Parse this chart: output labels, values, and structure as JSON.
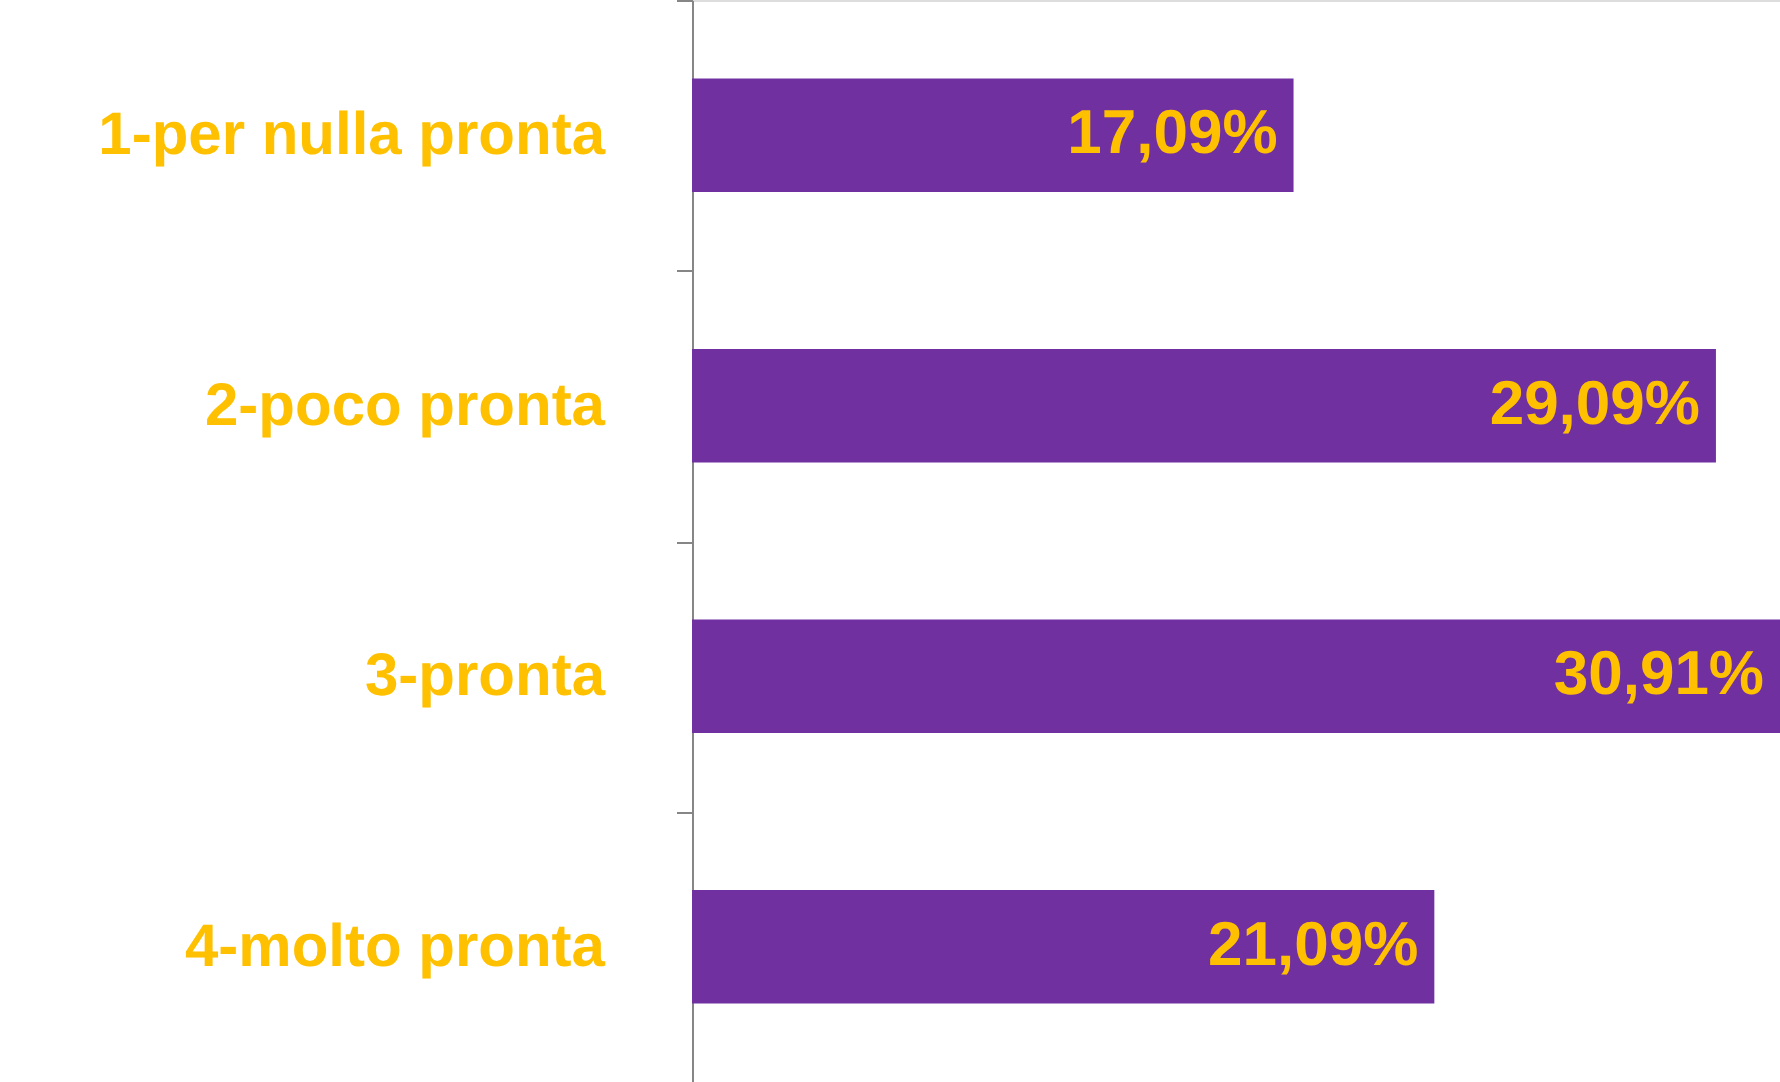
{
  "chart_data": {
    "type": "bar",
    "orientation": "horizontal",
    "categories": [
      "1-per nulla pronta",
      "2-poco pronta",
      "3-pronta",
      "4-molto pronta"
    ],
    "values": [
      17.09,
      29.09,
      30.91,
      21.09
    ],
    "value_labels": [
      "17,09%",
      "29,09%",
      "30,91%",
      "21,09%"
    ],
    "color": "#7030a0",
    "tick_labels": "y"
  }
}
